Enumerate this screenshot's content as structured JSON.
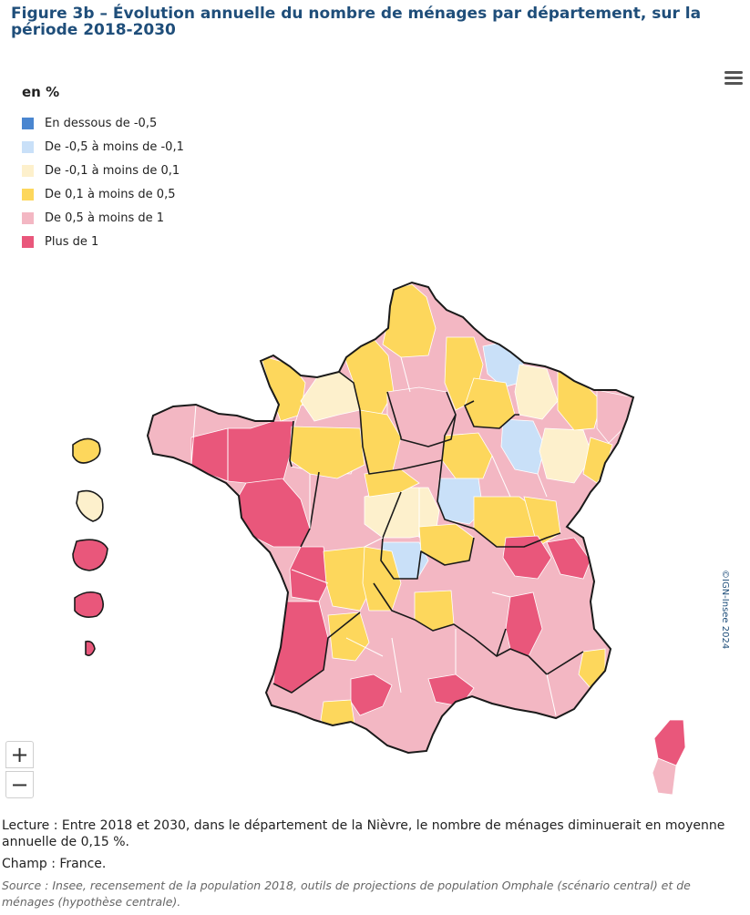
{
  "figure": {
    "title": "Figure 3b – Évolution annuelle du nombre de ménages par département, sur la période 2018-2030"
  },
  "legend": {
    "unit": "en %",
    "classes": [
      {
        "id": "c1",
        "label": "En dessous de -0,5",
        "color": "#4a86d0"
      },
      {
        "id": "c2",
        "label": "De -0,5 à moins de -0,1",
        "color": "#c9e0f8"
      },
      {
        "id": "c3",
        "label": "De -0,1 à moins de 0,1",
        "color": "#fdf0cc"
      },
      {
        "id": "c4",
        "label": "De 0,1 à moins de 0,5",
        "color": "#fdd75c"
      },
      {
        "id": "c5",
        "label": "De 0,5 à moins de 1",
        "color": "#f3b7c3"
      },
      {
        "id": "c6",
        "label": "Plus de 1",
        "color": "#e9577b"
      }
    ]
  },
  "map": {
    "credit": "©IGN-Insee 2024",
    "border_color": "#1a1a1a",
    "line_color": "#ffffff",
    "zoom_in_label": "+",
    "zoom_out_label": "−"
  },
  "notes": {
    "lecture": "Lecture : Entre 2018 et 2030, dans le département de la Nièvre, le nombre de ménages diminuerait en moyenne annuelle de 0,15 %.",
    "champ": "Champ : France.",
    "source": "Source : Insee, recensement de la population 2018, outils de projections de population Omphale (scénario central) et de ménages (hypothèse centrale)."
  }
}
